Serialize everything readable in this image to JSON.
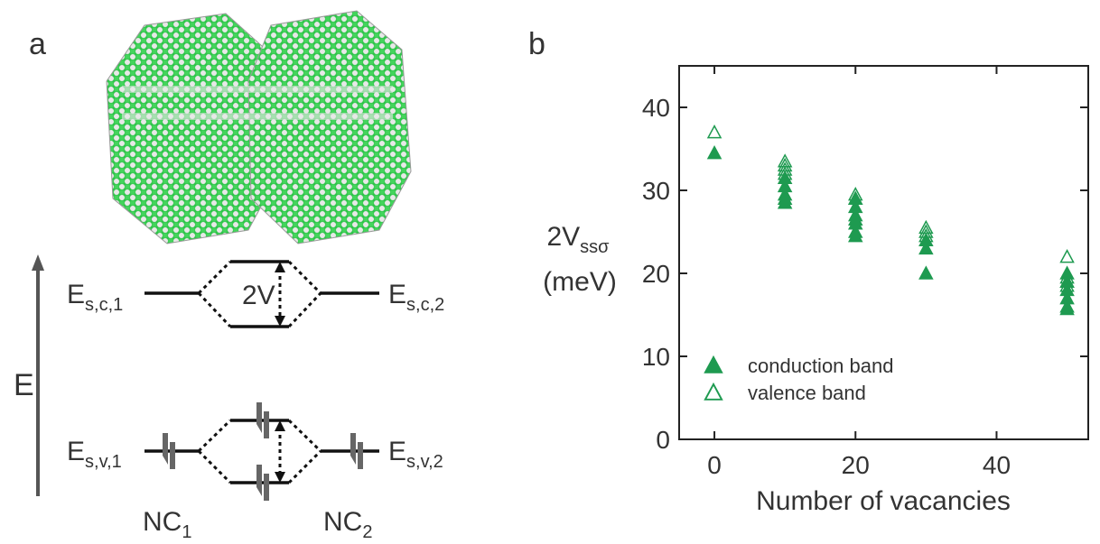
{
  "diagram": {
    "panel_label": "a",
    "energy_label": "E",
    "coupling_label": "2V",
    "levels": [
      {
        "base": "E",
        "sub": "s,c,1"
      },
      {
        "base": "E",
        "sub": "s,c,2"
      },
      {
        "base": "E",
        "sub": "s,v,1"
      },
      {
        "base": "E",
        "sub": "s,v,2"
      }
    ],
    "crystals": [
      {
        "base": "NC",
        "sub": "1"
      },
      {
        "base": "NC",
        "sub": "2"
      }
    ]
  },
  "chart_data": {
    "type": "scatter",
    "panel_label": "b",
    "xlabel": "Number of vacancies",
    "ylabel": {
      "text": "2V",
      "subscript": "ssσ",
      "unit": "(meV)"
    },
    "xlim": [
      -5,
      53
    ],
    "ylim": [
      0,
      45
    ],
    "xticks": [
      0,
      20,
      40
    ],
    "yticks": [
      0,
      10,
      20,
      30,
      40
    ],
    "legend": "lower left",
    "series": [
      {
        "name": "conduction band",
        "color": "#1e9a50",
        "filled": true,
        "x": [
          0,
          10,
          10,
          10,
          10,
          10,
          20,
          20,
          20,
          20,
          20,
          20,
          20,
          30,
          30,
          30,
          50,
          50,
          50,
          50,
          50,
          50
        ],
        "values": [
          34.5,
          31.5,
          30.5,
          29.5,
          29,
          28.5,
          29,
          28,
          27,
          26.5,
          26,
          25,
          24.5,
          24,
          23,
          20,
          20,
          19,
          18,
          17,
          16,
          15.7
        ]
      },
      {
        "name": "valence band",
        "color": "#1e9a50",
        "filled": false,
        "x": [
          0,
          10,
          10,
          10,
          10,
          20,
          20,
          30,
          30,
          30,
          50,
          50,
          50,
          50
        ],
        "values": [
          37,
          33.5,
          33,
          32.5,
          32,
          29.5,
          29,
          25.5,
          25,
          24.5,
          22,
          19.5,
          19,
          18.5
        ]
      }
    ]
  }
}
